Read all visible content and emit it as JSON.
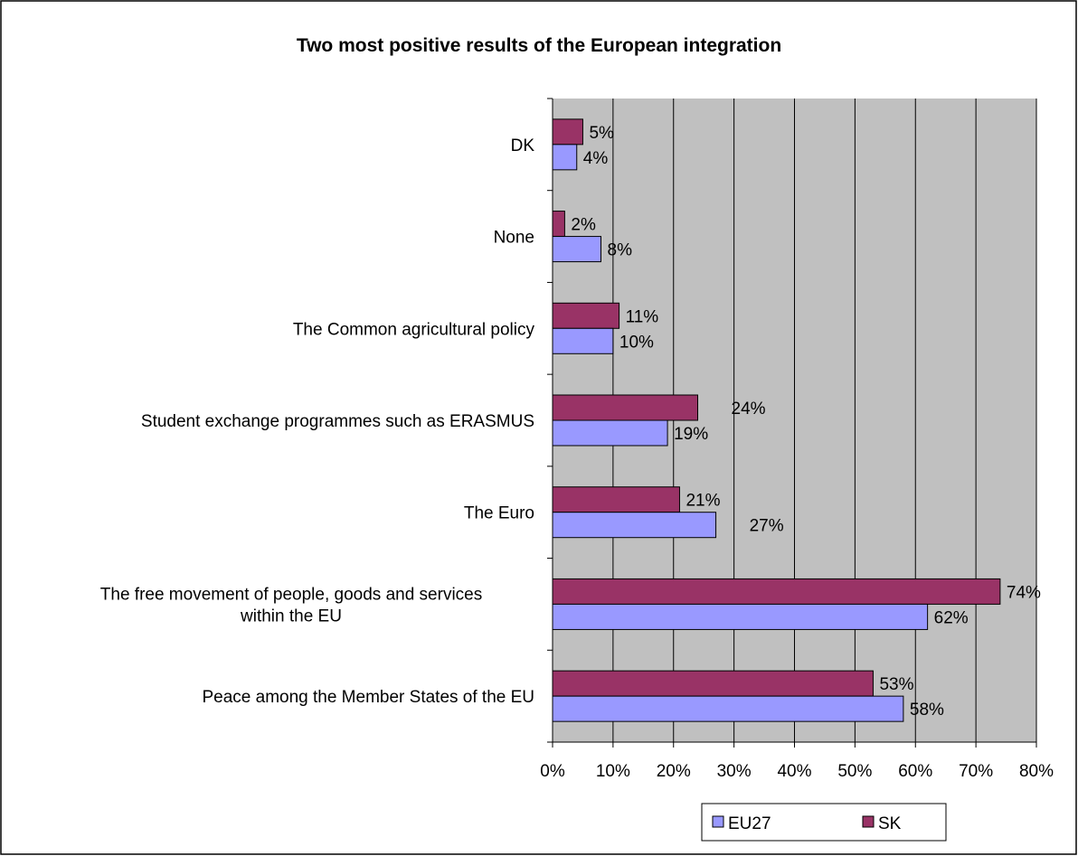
{
  "chart_data": {
    "type": "bar",
    "orientation": "horizontal",
    "title": "Two most positive results of the European integration",
    "xlabel": "",
    "ylabel": "",
    "xlim": [
      0,
      80
    ],
    "x_ticks": [
      "0%",
      "10%",
      "20%",
      "30%",
      "40%",
      "50%",
      "60%",
      "70%",
      "80%"
    ],
    "grid": "vertical",
    "legend_position": "bottom",
    "categories": [
      [
        "DK"
      ],
      [
        "None"
      ],
      [
        "The Common agricultural policy"
      ],
      [
        "Student exchange programmes such as ERASMUS"
      ],
      [
        "The Euro"
      ],
      [
        "The free movement of people, goods and services",
        "within the EU"
      ],
      [
        "Peace among the Member States of the EU"
      ]
    ],
    "series": [
      {
        "name": "EU27",
        "color": "#9999ff",
        "values": [
          4,
          8,
          10,
          19,
          27,
          62,
          58
        ],
        "labels": [
          "4%",
          "8%",
          "10%",
          "19%",
          "27%",
          "62%",
          "58%"
        ]
      },
      {
        "name": "SK",
        "color": "#993366",
        "values": [
          5,
          2,
          11,
          24,
          21,
          74,
          53
        ],
        "labels": [
          "5%",
          "2%",
          "11%",
          "24%",
          "21%",
          "74%",
          "53%"
        ]
      }
    ],
    "plot_background": "#c0c0c0"
  }
}
